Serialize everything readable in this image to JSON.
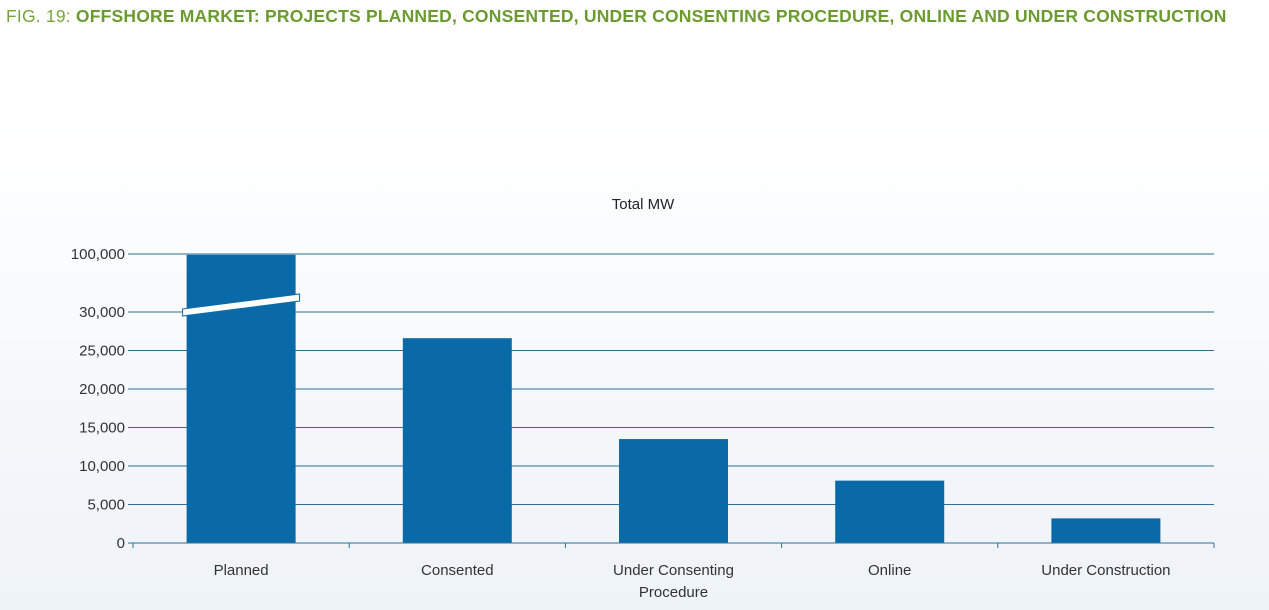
{
  "figure": {
    "prefix": "FIG. 19:",
    "title": "OFFSHORE MARKET: PROJECTS PLANNED, CONSENTED, UNDER CONSENTING PROCEDURE, ONLINE AND UNDER CONSTRUCTION"
  },
  "colors": {
    "title": "#6b9b2e",
    "bar": "#0a6aa8",
    "grid": "#2c6f9a"
  },
  "chart_data": {
    "type": "bar",
    "title": "Total MW",
    "xlabel": "",
    "ylabel": "",
    "categories": [
      [
        "Planned"
      ],
      [
        "Consented"
      ],
      [
        "Under Consenting",
        "Procedure"
      ],
      [
        "Online"
      ],
      [
        "Under Construction"
      ]
    ],
    "values": [
      99000,
      26600,
      13500,
      8100,
      3200
    ],
    "yticks": [
      {
        "value": 0,
        "label": "0"
      },
      {
        "value": 5000,
        "label": "5,000"
      },
      {
        "value": 10000,
        "label": "10,000"
      },
      {
        "value": 15000,
        "label": "15,000"
      },
      {
        "value": 20000,
        "label": "20,000"
      },
      {
        "value": 25000,
        "label": "25,000"
      },
      {
        "value": 30000,
        "label": "30,000"
      },
      {
        "value": 100000,
        "label": "100,000"
      }
    ],
    "axis_break": {
      "from": 30000,
      "to": 100000
    },
    "ylim": [
      0,
      100000
    ],
    "grid": true,
    "legend": "none"
  }
}
